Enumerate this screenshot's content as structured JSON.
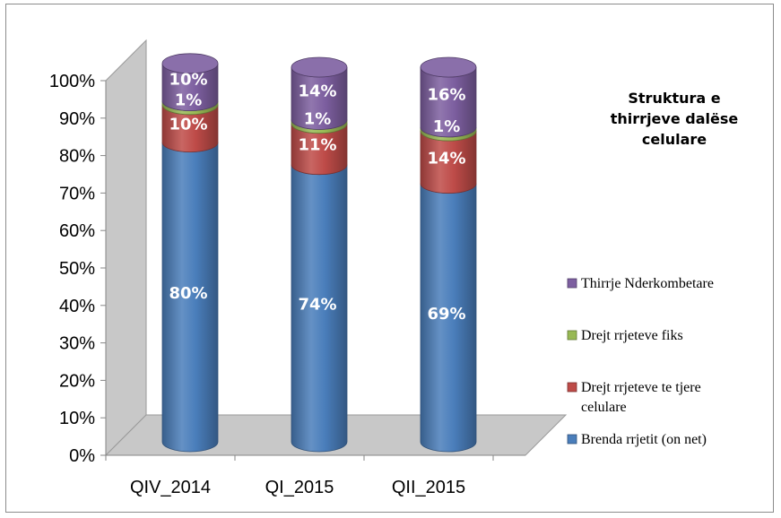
{
  "chart_data": {
    "type": "bar",
    "stacked": true,
    "style": "3d-cylinder",
    "title": "Struktura e thirrjeve dalëse celulare",
    "categories": [
      "QIV_2014",
      "QI_2015",
      "QII_2015"
    ],
    "ylim": [
      0,
      100
    ],
    "y_ticks": [
      "0%",
      "10%",
      "20%",
      "30%",
      "40%",
      "50%",
      "60%",
      "70%",
      "80%",
      "90%",
      "100%"
    ],
    "legend_position": "right",
    "series": [
      {
        "name": "Brenda rrjetit (on net)",
        "values": [
          80,
          74,
          69
        ],
        "labels": [
          "80%",
          "74%",
          "69%"
        ],
        "color": "#4a7ebb"
      },
      {
        "name": "Drejt rrjeteve te tjere celulare",
        "values": [
          10,
          11,
          14
        ],
        "labels": [
          "10%",
          "11%",
          "14%"
        ],
        "color": "#be4b48"
      },
      {
        "name": "Drejt rrjeteve fiks",
        "values": [
          1,
          1,
          1
        ],
        "labels": [
          "1%",
          "1%",
          "1%"
        ],
        "color": "#98b954"
      },
      {
        "name": "Thirrje Nderkombetare",
        "values": [
          10,
          14,
          16
        ],
        "labels": [
          "10%",
          "14%",
          "16%"
        ],
        "color": "#7d5fa0"
      }
    ]
  }
}
